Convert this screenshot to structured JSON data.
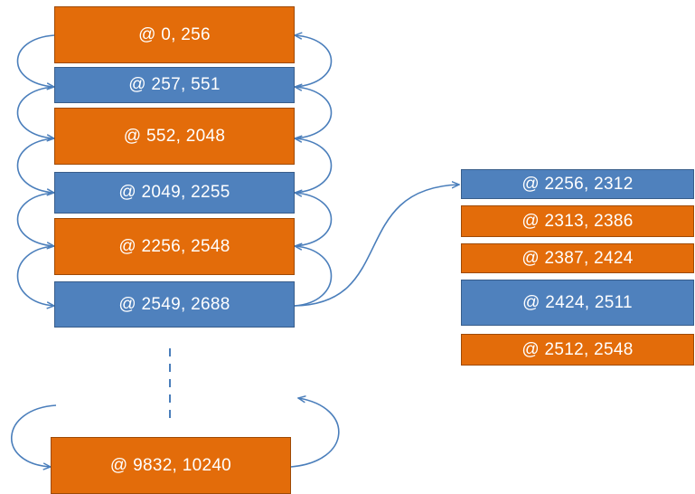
{
  "colors": {
    "orange": "#E36C0A",
    "blue": "#4F81BD",
    "arrow": "#4A7EBB",
    "ellipsis": "#4A7EBB"
  },
  "main_list": {
    "blocks": [
      {
        "label": "@ 0, 256",
        "color": "orange"
      },
      {
        "label": "@ 257, 551",
        "color": "blue"
      },
      {
        "label": "@ 552, 2048",
        "color": "orange"
      },
      {
        "label": "@ 2049, 2255",
        "color": "blue"
      },
      {
        "label": "@ 2256, 2548",
        "color": "orange"
      },
      {
        "label": "@ 2549, 2688",
        "color": "blue"
      }
    ],
    "last_block": {
      "label": "@ 9832, 10240",
      "color": "orange"
    }
  },
  "sub_list": {
    "blocks": [
      {
        "label": "@ 2256, 2312",
        "color": "blue"
      },
      {
        "label": "@ 2313, 2386",
        "color": "orange"
      },
      {
        "label": "@ 2387, 2424",
        "color": "orange"
      },
      {
        "label": "@ 2424, 2511",
        "color": "blue"
      },
      {
        "label": "@ 2512, 2548",
        "color": "orange"
      }
    ]
  }
}
